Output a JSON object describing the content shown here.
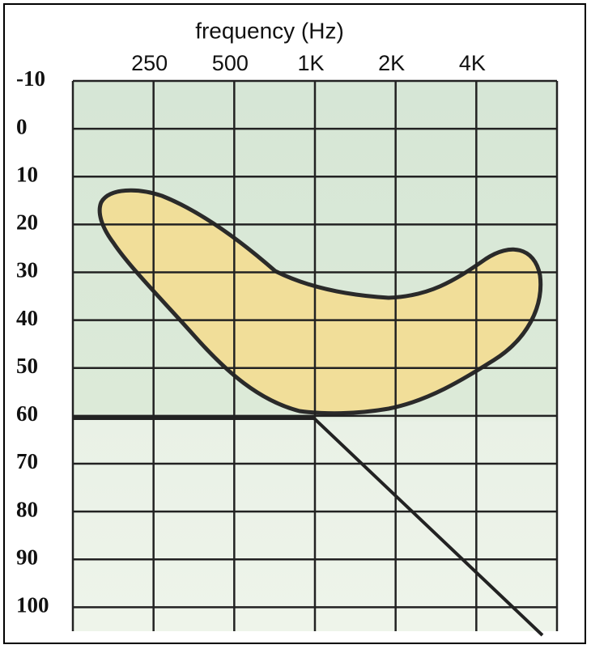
{
  "chart_data": {
    "type": "audiogram",
    "title": "frequency (Hz)",
    "categories": [
      "250",
      "500",
      "1K",
      "2K",
      "4K"
    ],
    "ylim": [
      -10,
      105
    ],
    "yticks": [
      -10,
      0,
      10,
      20,
      30,
      40,
      50,
      60,
      70,
      80,
      90,
      100
    ],
    "inverted_y": true,
    "grid": true
  }
}
